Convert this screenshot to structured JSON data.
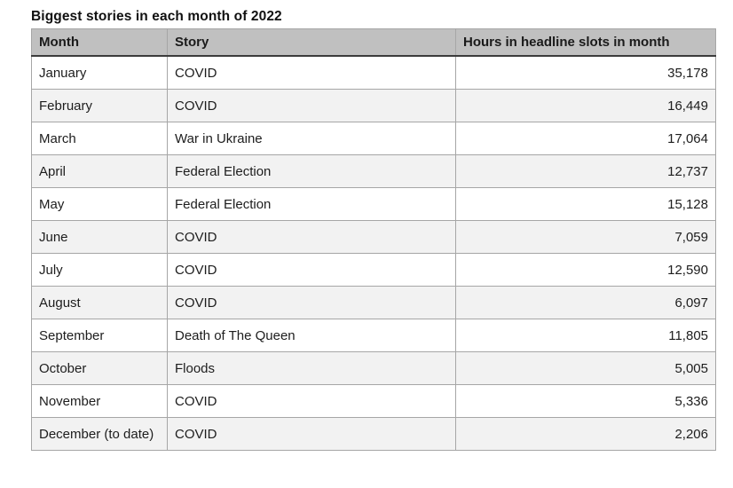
{
  "title": "Biggest stories in each month of 2022",
  "table": {
    "columns": [
      "Month",
      "Story",
      "Hours in headline slots in month"
    ],
    "rows": [
      {
        "month": "January",
        "story": "COVID",
        "hours": "35,178"
      },
      {
        "month": "February",
        "story": "COVID",
        "hours": "16,449"
      },
      {
        "month": "March",
        "story": "War in Ukraine",
        "hours": "17,064"
      },
      {
        "month": "April",
        "story": "Federal Election",
        "hours": "12,737"
      },
      {
        "month": "May",
        "story": "Federal Election",
        "hours": "15,128"
      },
      {
        "month": "June",
        "story": "COVID",
        "hours": "7,059"
      },
      {
        "month": "July",
        "story": "COVID",
        "hours": "12,590"
      },
      {
        "month": "August",
        "story": "COVID",
        "hours": "6,097"
      },
      {
        "month": "September",
        "story": "Death of The Queen",
        "hours": "11,805"
      },
      {
        "month": "October",
        "story": "Floods",
        "hours": "5,005"
      },
      {
        "month": "November",
        "story": "COVID",
        "hours": "5,336"
      },
      {
        "month": "December (to date)",
        "story": "COVID",
        "hours": "2,206"
      }
    ]
  },
  "colors": {
    "header_bg": "#c0c0c0",
    "header_underline": "#3b3b3b",
    "row_alt_bg": "#f2f2f2",
    "row_bg": "#ffffff",
    "border": "#a6a6a6",
    "text": "#1d1d1d"
  },
  "chart_data": {
    "type": "table",
    "title": "Biggest stories in each month of 2022",
    "columns": [
      "Month",
      "Story",
      "Hours in headline slots in month"
    ],
    "categories": [
      "January",
      "February",
      "March",
      "April",
      "May",
      "June",
      "July",
      "August",
      "September",
      "October",
      "November",
      "December (to date)"
    ],
    "stories": [
      "COVID",
      "COVID",
      "War in Ukraine",
      "Federal Election",
      "Federal Election",
      "COVID",
      "COVID",
      "COVID",
      "Death of The Queen",
      "Floods",
      "COVID",
      "COVID"
    ],
    "values": [
      35178,
      16449,
      17064,
      12737,
      15128,
      7059,
      12590,
      6097,
      11805,
      5005,
      5336,
      2206
    ]
  }
}
